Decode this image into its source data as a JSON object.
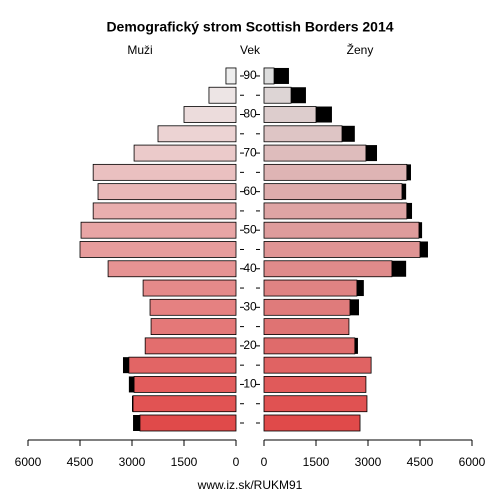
{
  "chart_data": {
    "type": "pyramid",
    "title": "Demografický strom Scottish Borders 2014",
    "left_label": "Muži",
    "center_label": "Vek",
    "right_label": "Ženy",
    "footer": "www.iz.sk/RUKM91",
    "categories": [
      null,
      null,
      "10",
      null,
      "20",
      null,
      "30",
      null,
      "40",
      null,
      "50",
      null,
      "60",
      null,
      "70",
      null,
      "80",
      null,
      "90"
    ],
    "series": [
      {
        "name": "Muži",
        "colors": [
          "#e04a4a",
          "#eeeeee"
        ],
        "values": [
          2970,
          3000,
          3090,
          3260,
          2620,
          2450,
          2480,
          2680,
          3690,
          4500,
          4470,
          4120,
          3980,
          4120,
          2940,
          2250,
          1500,
          780,
          290
        ]
      },
      {
        "name": "Ženy",
        "colors": [
          "#e04a4a",
          "#dddddd"
        ],
        "values": [
          2770,
          2970,
          2940,
          3090,
          2710,
          2450,
          2740,
          2880,
          4100,
          4730,
          4560,
          4270,
          4100,
          4240,
          3260,
          2620,
          1960,
          1210,
          720
        ]
      }
    ],
    "surplus_color": "#000000",
    "xlim": [
      0,
      6000
    ],
    "xticks": [
      0,
      1500,
      3000,
      4500,
      6000
    ]
  }
}
